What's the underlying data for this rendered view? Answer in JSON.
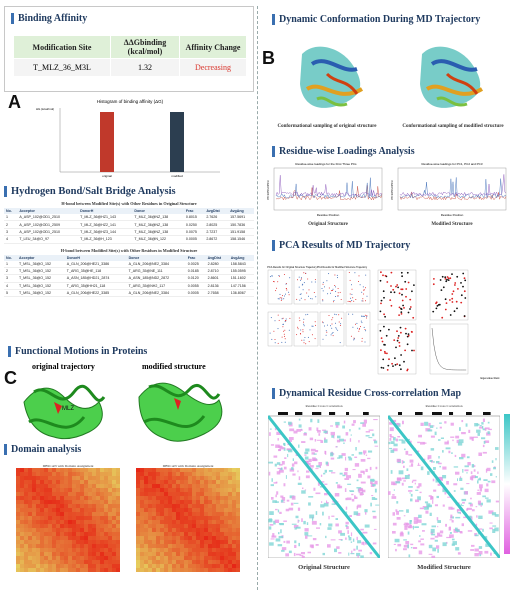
{
  "binding": {
    "title": "Binding Affinity",
    "headers": [
      "Modification Site",
      "ΔΔGbinding (kcal/mol)",
      "Affinity Change"
    ],
    "row": {
      "site": "T_MLZ_36_M3L",
      "value": "1.32",
      "change": "Decreasing"
    },
    "change_color": "#d9342b"
  },
  "hist": {
    "letter": "A",
    "title": "Histogram of binding affinity (ΔG)",
    "ylabel": "ΔG (kcal/mol)",
    "bars": [
      {
        "name": "bar-original",
        "value": 1.0,
        "color": "#c0392b"
      },
      {
        "name": "bar-modified",
        "value": 1.0,
        "color": "#2c3e50"
      }
    ],
    "xticks": [
      "original",
      "modified"
    ]
  },
  "hbond": {
    "title": "Hydrogen Bond/Salt Bridge Analysis",
    "table1_title": "H-bond between Modified Site(s) with Other Residues in Original Structure",
    "table2_title": "H-bond between Modified Site(s) with Other Residues in Modified Structure",
    "headers": [
      "No.",
      "Acceptor",
      "DonorH",
      "Donor",
      "Frac",
      "AvgDist",
      "AvgAng"
    ],
    "rows1": [
      [
        "1",
        "A_ASP_102@OD1_2510",
        "T_MLZ_36@HZ1_143",
        "T_MLZ_36@NZ_138",
        "0.8015",
        "2.7626",
        "157.5691"
      ],
      [
        "2",
        "A_ASP_102@OD1_2509",
        "T_MLZ_36@HZ2_141",
        "T_MLZ_36@NZ_138",
        "0.0250",
        "2.8025",
        "150.7836"
      ],
      [
        "3",
        "A_ASP_102@OD1_2510",
        "T_MLZ_36@HZ3_144",
        "T_MLZ_36@NZ_138",
        "0.0075",
        "2.7237",
        "151.9158"
      ],
      [
        "4",
        "T_LEU_34@O_97",
        "T_MLZ_36@H_123",
        "T_MLZ_36@N_122",
        "0.0005",
        "2.8672",
        "158.1546"
      ]
    ],
    "rows2": [
      [
        "1",
        "T_MSL_36@O_152",
        "A_GLN_206@HE21_3386",
        "A_GLN_206@NE2_3384",
        "0.0025",
        "2.8280",
        "158.5843"
      ],
      [
        "2",
        "T_MSL_36@O_152",
        "T_ARG_35@HE_118",
        "T_ARG_35@NE_111",
        "0.0185",
        "2.8710",
        "155.0595"
      ],
      [
        "3",
        "T_MSL_36@O_152",
        "A_ASN_185@HD21_2874",
        "A_ASN_185@ND2_2872",
        "0.0120",
        "2.8601",
        "151.1602"
      ],
      [
        "4",
        "T_MSL_36@O_152",
        "T_ARG_35@HH21_118",
        "T_ARG_35@NH2_117",
        "0.0055",
        "2.8136",
        "147.7156"
      ],
      [
        "5",
        "T_MSL_36@O_152",
        "A_GLN_206@HE22_3385",
        "A_GLN_206@NE2_3384",
        "0.0005",
        "2.7658",
        "136.8067"
      ]
    ]
  },
  "functional": {
    "title": "Functional Motions in Proteins",
    "letter": "C",
    "left_label": "original trajectory",
    "right_label": "modified structure",
    "site_label": "MLZ"
  },
  "domain": {
    "title": "Domain analysis",
    "left_title": "DBSCAN with Domain Assignment",
    "right_title": "DBSCAN with Domain Assignment"
  },
  "dynamic": {
    "letter": "B",
    "title": "Dynamic Conformation During MD Trajectory",
    "left_caption": "Conformational sampling of original structure",
    "right_caption": "Conformational sampling of modified structure"
  },
  "loadings": {
    "title": "Residue-wise Loadings Analysis",
    "left_title": "Residue-wise loadings for the First Three PCs",
    "right_title": "Residue-wise loadings for PC1, PC2 and PC3",
    "xlabel": "Residue Position",
    "ylabel": "PC1/PC2/PC3",
    "left_caption": "Original Structure",
    "right_caption": "Modified Structure"
  },
  "pca": {
    "title": "PCA Results of MD Trajectory",
    "left_title": "PCA Results for Original Structure Trajectory",
    "right_title": "PCA Results for Modified Structure Trajectory",
    "xlabel": "Eigenvalue Rank"
  },
  "dccm": {
    "title": "Dynamical Residue Cross-correlation Map",
    "left_title": "Residue Cross Correlation",
    "right_title": "Residue Cross Correlation",
    "left_caption": "Original Structure",
    "right_caption": "Modified Structure"
  }
}
